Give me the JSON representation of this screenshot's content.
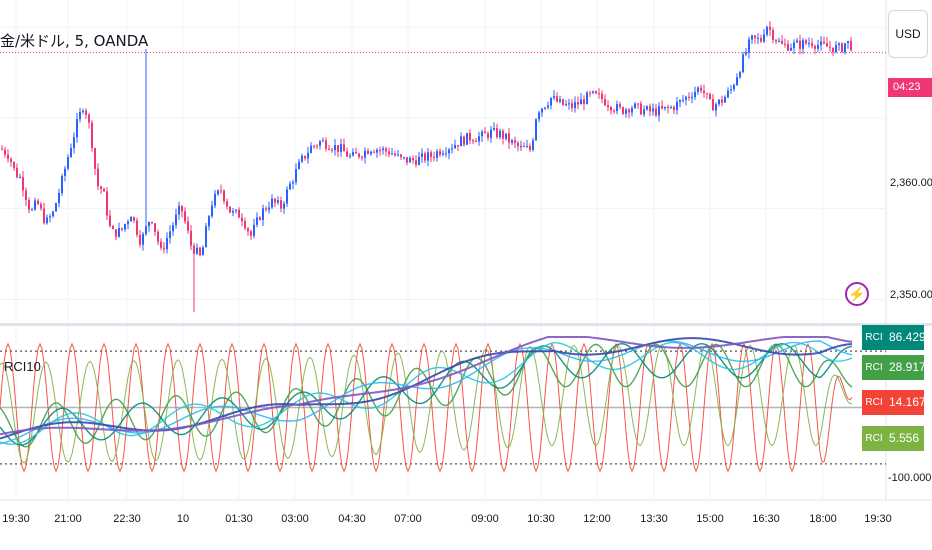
{
  "symbol_title": "金/米ドル, 5, OANDA",
  "currency_button": "USD",
  "countdown": "04:23",
  "indicator_label": "RCI10",
  "price_axis": [
    "2,360.000",
    "2,350.000"
  ],
  "rci_axis_bottom": "-100.000",
  "rci_badges": [
    {
      "name": "RCI 4",
      "value": "86.429",
      "color": "#00897b"
    },
    {
      "name": "RCI 3",
      "value": "28.917",
      "color": "#43a047"
    },
    {
      "name": "RCI 1",
      "value": "14.167",
      "color": "#f44336"
    },
    {
      "name": "RCI 2",
      "value": "5.556",
      "color": "#7cb342"
    }
  ],
  "time_labels": [
    "19:30",
    "21:00",
    "22:30",
    "10",
    "01:30",
    "03:00",
    "04:30",
    "07:00",
    "09:00",
    "10:30",
    "12:00",
    "13:30",
    "15:00",
    "16:30",
    "18:00",
    "19:30"
  ],
  "colors": {
    "up": "#2962ff",
    "down": "#f23673",
    "grid": "#f0f3fa"
  },
  "chart_data": {
    "type": "candlestick",
    "price_ylim": [
      2347.5,
      2383.0
    ],
    "price_ticks": [
      2360,
      2350
    ],
    "last_price_line": 2377.2,
    "price_anchors": [
      [
        0,
        2366.6
      ],
      [
        8,
        2365.9
      ],
      [
        14,
        2364.0
      ],
      [
        20,
        2363.3
      ],
      [
        30,
        2359.5
      ],
      [
        36,
        2360.7
      ],
      [
        45,
        2358.4
      ],
      [
        52,
        2359.5
      ],
      [
        60,
        2362.6
      ],
      [
        68,
        2366.2
      ],
      [
        77,
        2369.7
      ],
      [
        83,
        2371.7
      ],
      [
        90,
        2368.2
      ],
      [
        96,
        2362.6
      ],
      [
        102,
        2362.0
      ],
      [
        110,
        2357.3
      ],
      [
        120,
        2357.5
      ],
      [
        130,
        2359.5
      ],
      [
        140,
        2356.3
      ],
      [
        150,
        2359.3
      ],
      [
        160,
        2355.2
      ],
      [
        170,
        2357.8
      ],
      [
        180,
        2360.2
      ],
      [
        190,
        2356.0
      ],
      [
        200,
        2354.5
      ],
      [
        210,
        2360.5
      ],
      [
        220,
        2362.1
      ],
      [
        230,
        2359.5
      ],
      [
        240,
        2359.3
      ],
      [
        250,
        2357.0
      ],
      [
        260,
        2359.5
      ],
      [
        270,
        2360.8
      ],
      [
        280,
        2360.2
      ],
      [
        290,
        2362.9
      ],
      [
        300,
        2365.2
      ],
      [
        310,
        2366.8
      ],
      [
        320,
        2367.4
      ],
      [
        330,
        2367.0
      ],
      [
        340,
        2366.5
      ],
      [
        350,
        2365.6
      ],
      [
        360,
        2366.1
      ],
      [
        370,
        2366.7
      ],
      [
        380,
        2366.5
      ],
      [
        390,
        2366.2
      ],
      [
        400,
        2365.4
      ],
      [
        410,
        2365.3
      ],
      [
        420,
        2365.5
      ],
      [
        430,
        2365.8
      ],
      [
        440,
        2366.5
      ],
      [
        450,
        2366.9
      ],
      [
        460,
        2367.5
      ],
      [
        470,
        2367.9
      ],
      [
        480,
        2367.9
      ],
      [
        490,
        2368.4
      ],
      [
        500,
        2368.2
      ],
      [
        510,
        2367.3
      ],
      [
        520,
        2366.6
      ],
      [
        530,
        2366.5
      ],
      [
        536,
        2370.9
      ],
      [
        540,
        2371.1
      ],
      [
        550,
        2372.2
      ],
      [
        560,
        2371.5
      ],
      [
        570,
        2371.2
      ],
      [
        580,
        2371.8
      ],
      [
        590,
        2372.5
      ],
      [
        600,
        2372.2
      ],
      [
        610,
        2371.4
      ],
      [
        620,
        2370.8
      ],
      [
        630,
        2371.3
      ],
      [
        640,
        2370.9
      ],
      [
        650,
        2370.7
      ],
      [
        660,
        2370.8
      ],
      [
        670,
        2371.1
      ],
      [
        680,
        2371.8
      ],
      [
        690,
        2372.7
      ],
      [
        700,
        2373.4
      ],
      [
        710,
        2371.3
      ],
      [
        720,
        2371.8
      ],
      [
        730,
        2373.1
      ],
      [
        740,
        2375.9
      ],
      [
        750,
        2378.6
      ],
      [
        760,
        2378.6
      ],
      [
        765,
        2380.4
      ],
      [
        770,
        2379.5
      ],
      [
        780,
        2378.0
      ],
      [
        790,
        2378.0
      ],
      [
        800,
        2378.1
      ],
      [
        810,
        2378.4
      ],
      [
        820,
        2377.9
      ],
      [
        830,
        2377.8
      ],
      [
        840,
        2377.6
      ],
      [
        845,
        2378.4
      ],
      [
        850,
        2378.0
      ],
      [
        852,
        2377.2
      ]
    ],
    "spikes": [
      {
        "x": 146,
        "high": 2377.6
      },
      {
        "x": 194,
        "low": 2348.6
      }
    ],
    "rci_ylim": [
      -100,
      100
    ],
    "rci_reference_levels": [
      80,
      0,
      -80
    ],
    "rci_series": [
      {
        "name": "RCI 1",
        "color": "#f44336",
        "last": 14.167
      },
      {
        "name": "RCI 2",
        "color": "#7cb342",
        "last": 5.556
      },
      {
        "name": "RCI 3",
        "color": "#43a047",
        "last": 28.917
      },
      {
        "name": "RCI 4",
        "color": "#00897b",
        "last": 86.429
      },
      {
        "name": "RCI 5",
        "color": "#26c6da",
        "last": 70.0
      },
      {
        "name": "RCI 6",
        "color": "#29b6f6",
        "last": 75.0
      },
      {
        "name": "RCI 7",
        "color": "#3949ab",
        "last": 90.0
      },
      {
        "name": "RCI 8",
        "color": "#7e57c2",
        "last": 93.0
      }
    ]
  }
}
